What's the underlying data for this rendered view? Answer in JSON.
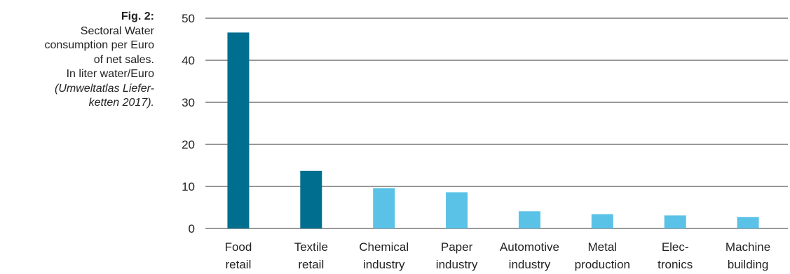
{
  "caption": {
    "fig_label": "Fig. 2:",
    "lines": [
      "Sectoral Water",
      "consumption per Euro",
      "of net sales.",
      "In liter water/Euro"
    ],
    "source_lines": [
      "(Umweltatlas Liefer-",
      "ketten 2017)."
    ]
  },
  "chart_data": {
    "type": "bar",
    "title": "",
    "xlabel": "",
    "ylabel": "",
    "ylim": [
      0,
      50
    ],
    "yticks": [
      0,
      10,
      20,
      30,
      40,
      50
    ],
    "grid": true,
    "categories": [
      [
        "Food",
        "retail"
      ],
      [
        "Textile",
        "retail"
      ],
      [
        "Chemical",
        "industry"
      ],
      [
        "Paper",
        "industry"
      ],
      [
        "Automotive",
        "industry"
      ],
      [
        "Metal",
        "production"
      ],
      [
        "Elec-",
        "tronics"
      ],
      [
        "Machine",
        "building"
      ]
    ],
    "values": [
      46.6,
      13.7,
      9.6,
      8.6,
      4.1,
      3.4,
      3.1,
      2.7
    ],
    "colors": [
      "#006e8f",
      "#006e8f",
      "#5bc2e7",
      "#5bc2e7",
      "#5bc2e7",
      "#5bc2e7",
      "#5bc2e7",
      "#5bc2e7"
    ]
  }
}
